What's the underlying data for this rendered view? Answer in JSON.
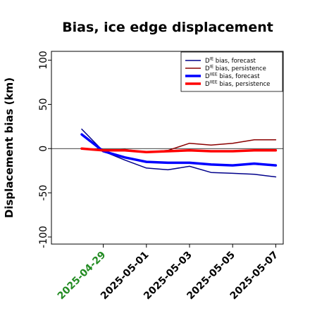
{
  "chart_data": {
    "type": "line",
    "title": "Bias, ice edge displacement",
    "ylabel": "Displacement bias (km)",
    "xlabel": "",
    "ylim": [
      -108,
      110
    ],
    "yticks": [
      -100,
      -50,
      0,
      50,
      100
    ],
    "x": [
      "2025-04-28",
      "2025-04-29",
      "2025-04-30",
      "2025-05-01",
      "2025-05-02",
      "2025-05-03",
      "2025-05-04",
      "2025-05-05",
      "2025-05-06",
      "2025-05-07"
    ],
    "xticks": [
      {
        "label": "2025-04-29",
        "color": "#228b22"
      },
      {
        "label": "2025-05-01",
        "color": "#000000"
      },
      {
        "label": "2025-05-03",
        "color": "#000000"
      },
      {
        "label": "2025-05-05",
        "color": "#000000"
      },
      {
        "label": "2025-05-07",
        "color": "#000000"
      }
    ],
    "grid": false,
    "zero_line": true,
    "legend_position": "top-right",
    "series": [
      {
        "base": "D",
        "sup": "IE",
        "suffix": " bias, forecast",
        "color": "#00008b",
        "width": 1.5,
        "values": [
          22,
          -3,
          -13,
          -22,
          -24,
          -20,
          -27,
          -28,
          -29,
          -32
        ]
      },
      {
        "base": "D",
        "sup": "IE",
        "suffix": " bias, persistence",
        "color": "#8b0000",
        "width": 1.5,
        "values": [
          0,
          -2,
          -1,
          -4,
          -2,
          6,
          4,
          6,
          10,
          10
        ]
      },
      {
        "base": "D",
        "sup": "IIEE",
        "suffix": " bias, forecast",
        "color": "#0000ff",
        "width": 3.5,
        "values": [
          16,
          -3,
          -10,
          -15,
          -16,
          -16,
          -18,
          -19,
          -17,
          -19
        ]
      },
      {
        "base": "D",
        "sup": "IIEE",
        "suffix": " bias, persistence",
        "color": "#ff0000",
        "width": 3.5,
        "values": [
          0,
          -2,
          -2,
          -4,
          -3,
          -2,
          -3,
          -3,
          -2,
          -2
        ]
      }
    ]
  }
}
